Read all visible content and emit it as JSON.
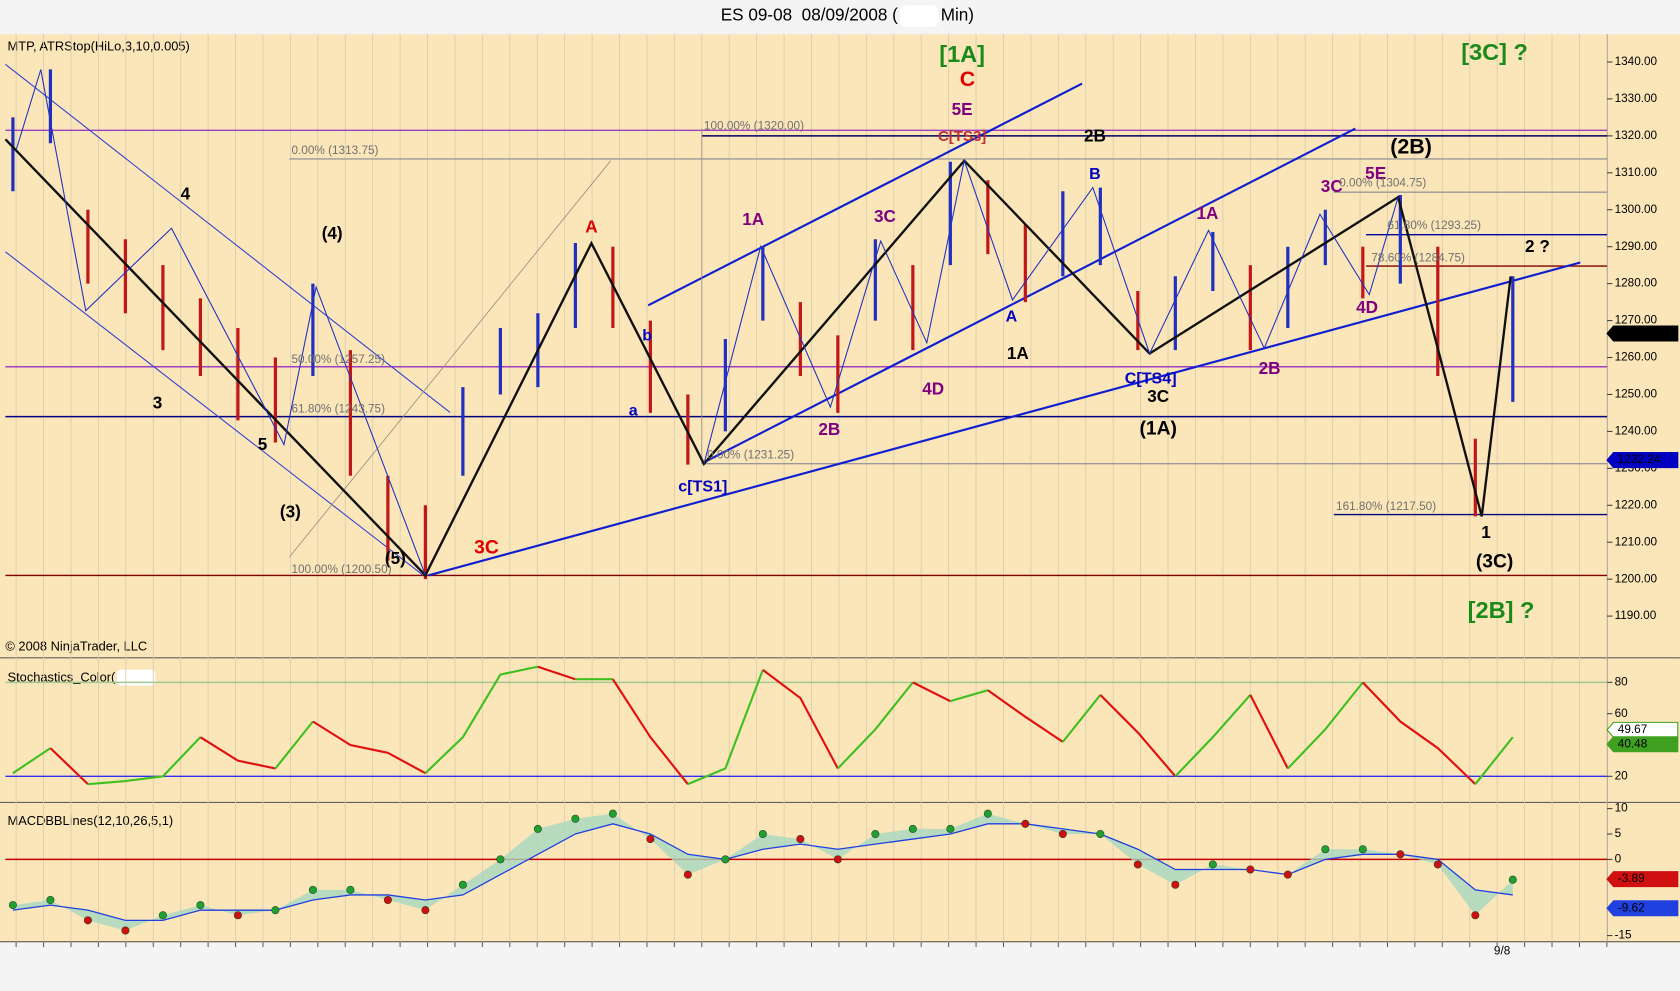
{
  "header": {
    "title": "ES 09-08  08/09/2008 (",
    "title_end": "Min)"
  },
  "chart_data": [
    {
      "type": "ohlc",
      "title": "MTP, ATRStop(HiLo,3,10,0.005)",
      "footer": "© 2008 NinjaTrader, LLC",
      "x_label": "9/8",
      "high": [
        1325,
        1338,
        1300,
        1292,
        1285,
        1276,
        1268,
        1260,
        1280,
        1262,
        1228,
        1220,
        1252,
        1268,
        1272,
        1291,
        1290,
        1270,
        1250,
        1265,
        1290,
        1275,
        1266,
        1292,
        1285,
        1313,
        1308,
        1296,
        1305,
        1306,
        1278,
        1282,
        1294,
        1285,
        1290,
        1300,
        1290,
        1304,
        1290,
        1238,
        1282
      ],
      "low": [
        1305,
        1318,
        1280,
        1272,
        1262,
        1255,
        1243,
        1237,
        1255,
        1228,
        1205,
        1200,
        1228,
        1250,
        1252,
        1268,
        1268,
        1245,
        1231,
        1240,
        1270,
        1255,
        1245,
        1270,
        1262,
        1285,
        1288,
        1275,
        1282,
        1285,
        1262,
        1262,
        1278,
        1262,
        1268,
        1285,
        1276,
        1280,
        1255,
        1217,
        1248
      ],
      "up_color": "#2030c0",
      "down_color": "#c01818",
      "ylim": [
        1179,
        1347.5
      ],
      "yticks": [
        {
          "value": 1190,
          "label": "1190.00"
        },
        {
          "value": 1200,
          "label": "1200.00"
        },
        {
          "value": 1210,
          "label": "1210.00"
        },
        {
          "value": 1220,
          "label": "1220.00"
        },
        {
          "value": 1230,
          "label": "1230.00"
        },
        {
          "value": 1240,
          "label": "1240.00"
        },
        {
          "value": 1250,
          "label": "1250.00"
        },
        {
          "value": 1260,
          "label": "1260.00"
        },
        {
          "value": 1270,
          "label": "1270.00"
        },
        {
          "value": 1280,
          "label": "1280.00"
        },
        {
          "value": 1290,
          "label": "1290.00"
        },
        {
          "value": 1300,
          "label": "1300.00"
        },
        {
          "value": 1310,
          "label": "1310.00"
        },
        {
          "value": 1320,
          "label": "1320.00"
        },
        {
          "value": 1330,
          "label": "1330.00"
        },
        {
          "value": 1340,
          "label": "1340.00"
        }
      ],
      "hlines": [
        {
          "value": 1321.5,
          "color": "#a040c0"
        },
        {
          "value": 1320,
          "color": "#000060"
        },
        {
          "value": 1313.75,
          "color": "#999999"
        },
        {
          "value": 1304.75,
          "color": "#999999"
        },
        {
          "value": 1293.25,
          "color": "#0000a0"
        },
        {
          "value": 1284.75,
          "color": "#800000"
        },
        {
          "value": 1257.5,
          "color": "#a040c0"
        },
        {
          "value": 1244,
          "color": "#000080"
        },
        {
          "value": 1231.25,
          "color": "#999999"
        },
        {
          "value": 1217.5,
          "color": "#000080"
        },
        {
          "value": 1201,
          "color": "#800000"
        }
      ],
      "fib_labels": [
        "0.00% (1313.75)",
        "100.00% (1320.00)",
        "50.00% (1257.25)",
        "61.80% (1243.75)",
        "100.00% (1200.50)",
        "0.00% (1231.25)",
        "0.00% (1304.75)",
        "61.80% (1293.25)",
        "78.60% (1284.75)",
        "161.80% (1217.50)"
      ],
      "annotations": [
        {
          "text": "[1A]",
          "color": "#1a8a1a"
        },
        {
          "text": "C",
          "color": "#e00000"
        },
        {
          "text": "5E",
          "color": "#800080"
        },
        {
          "text": "C[TS3]",
          "color": "#c03030"
        },
        {
          "text": "2B",
          "color": "#000000"
        },
        {
          "text": "(2B)",
          "color": "#000000"
        },
        {
          "text": "[3C] ?",
          "color": "#1a8a1a"
        },
        {
          "text": "A",
          "color": "#e00000"
        },
        {
          "text": "1A",
          "color": "#800080"
        },
        {
          "text": "3C",
          "color": "#800080"
        },
        {
          "text": "4",
          "color": "#000000"
        },
        {
          "text": "(4)",
          "color": "#000000"
        },
        {
          "text": "3",
          "color": "#000000"
        },
        {
          "text": "5",
          "color": "#000000"
        },
        {
          "text": "(3)",
          "color": "#000000"
        },
        {
          "text": "(5)",
          "color": "#000000"
        },
        {
          "text": "3C",
          "color": "#e00000"
        },
        {
          "text": "b",
          "color": "#0000c0"
        },
        {
          "text": "a",
          "color": "#0000c0"
        },
        {
          "text": "c[TS1]",
          "color": "#0000c0"
        },
        {
          "text": "2B",
          "color": "#800080"
        },
        {
          "text": "4D",
          "color": "#800080"
        },
        {
          "text": "1A",
          "color": "#000000"
        },
        {
          "text": "A",
          "color": "#0000c0"
        },
        {
          "text": "B",
          "color": "#0000c0"
        },
        {
          "text": "C[TS4]",
          "color": "#0000c0"
        },
        {
          "text": "3C",
          "color": "#000000"
        },
        {
          "text": "(1A)",
          "color": "#000000"
        },
        {
          "text": "1A",
          "color": "#800080"
        },
        {
          "text": "2B",
          "color": "#800080"
        },
        {
          "text": "3C",
          "color": "#800080"
        },
        {
          "text": "5E",
          "color": "#800080"
        },
        {
          "text": "4D",
          "color": "#800080"
        },
        {
          "text": "2 ?",
          "color": "#000000"
        },
        {
          "text": "1",
          "color": "#000000"
        },
        {
          "text": "(3C)",
          "color": "#000000"
        },
        {
          "text": "[2B] ?",
          "color": "#1a8a1a"
        }
      ],
      "last_values": [
        {
          "value": {
            "value": 1266.5,
            "label": "1266.50"
          },
          "color": "#000000"
        },
        {
          "value": 1232.24,
          "color": "#0000c0"
        }
      ]
    },
    {
      "type": "line",
      "title": "Stochastics_Color(",
      "values": [
        22,
        38,
        15,
        17,
        20,
        45,
        30,
        25,
        55,
        40,
        35,
        22,
        45,
        85,
        90,
        82,
        82,
        45,
        15,
        25,
        88,
        70,
        25,
        50,
        80,
        68,
        75,
        58,
        42,
        72,
        48,
        20,
        45,
        72,
        25,
        50,
        80,
        55,
        38,
        15,
        45
      ],
      "up_color": "#40c020",
      "down_color": "#e01010",
      "ylim": [
        4,
        95
      ],
      "yticks": [
        20,
        60,
        80
      ],
      "hlines": [
        {
          "value": 80,
          "color": "#a0c890"
        },
        {
          "value": 20,
          "color": "#3030f0"
        }
      ],
      "last_values": [
        {
          "value": 49.67,
          "color": "#40a020"
        },
        {
          "value": 40.48,
          "color": "#40a020"
        }
      ]
    },
    {
      "type": "macd",
      "title": "MACDBBLines(12,10,26,5,1)",
      "values": [
        -9,
        -8,
        -12,
        -14,
        -11,
        -9,
        -11,
        -10,
        -6,
        -6,
        -8,
        -10,
        -5,
        0,
        6,
        8,
        9,
        4,
        -3,
        0,
        5,
        4,
        0,
        5,
        6,
        6,
        9,
        7,
        5,
        5,
        -1,
        -5,
        -1,
        -2,
        -3,
        2,
        2,
        1,
        -1,
        -11,
        -4
      ],
      "average": [
        -10,
        -9,
        -10,
        -12,
        -12,
        -10,
        -10,
        -10,
        -8,
        -7,
        -7,
        -8,
        -7,
        -3,
        1,
        5,
        7,
        5,
        1,
        0,
        2,
        3,
        2,
        3,
        4,
        5,
        7,
        7,
        6,
        5,
        2,
        -2,
        -2,
        -2,
        -3,
        0,
        1,
        1,
        0,
        -6,
        -7
      ],
      "up_color": "#20a030",
      "down_color": "#d01010",
      "average_color": "#2040e0",
      "fill_color": "#a8d8c0",
      "ylim": [
        -16,
        11
      ],
      "yticks": [
        10,
        5,
        0,
        -15
      ],
      "hlines": [
        {
          "value": 0,
          "color": "#c00000"
        }
      ],
      "last_values": [
        {
          "value": -3.89,
          "color": "#d01010"
        },
        {
          "value": -9.62,
          "color": "#2040e0"
        }
      ]
    }
  ]
}
